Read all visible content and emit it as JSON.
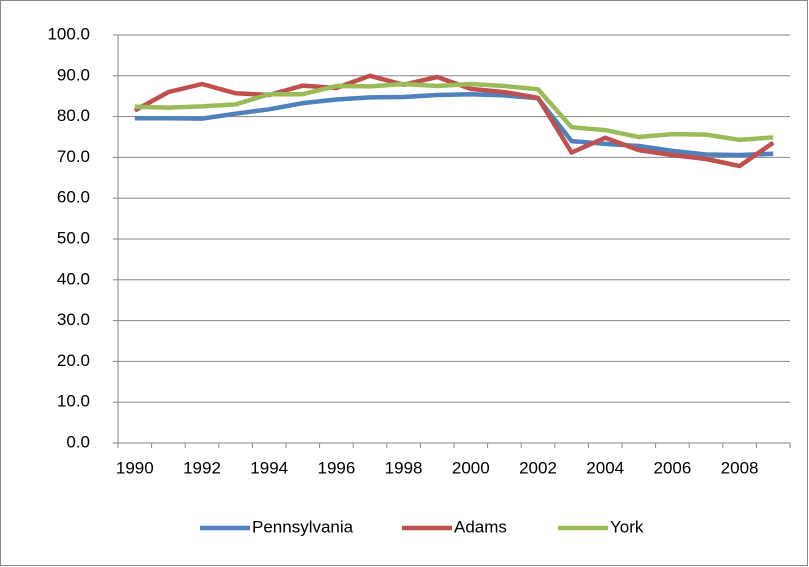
{
  "chart_data": {
    "type": "line",
    "categories": [
      "1990",
      null,
      "1992",
      null,
      "1994",
      null,
      "1996",
      null,
      "1998",
      null,
      "2000",
      null,
      "2002",
      null,
      "2004",
      null,
      "2006",
      null,
      "2008",
      null
    ],
    "series": [
      {
        "name": "Pennsylvania",
        "color": "#4f81bd",
        "values": [
          79.6,
          79.6,
          79.5,
          80.7,
          81.8,
          83.3,
          84.2,
          84.7,
          84.8,
          85.3,
          85.5,
          85.2,
          84.5,
          74.0,
          73.3,
          72.8,
          71.6,
          70.7,
          70.6,
          70.9
        ]
      },
      {
        "name": "Adams",
        "color": "#c0504d",
        "values": [
          81.5,
          86.0,
          88.0,
          85.7,
          85.3,
          87.6,
          87.0,
          90.0,
          87.8,
          89.7,
          86.8,
          86.0,
          84.6,
          71.2,
          74.8,
          71.8,
          70.6,
          69.6,
          67.9,
          73.6
        ]
      },
      {
        "name": "York",
        "color": "#9bbb59",
        "values": [
          82.4,
          82.2,
          82.5,
          83.0,
          85.5,
          85.5,
          87.5,
          87.4,
          88.0,
          87.5,
          88.0,
          87.5,
          86.7,
          77.4,
          76.7,
          75.0,
          75.7,
          75.6,
          74.3,
          74.9
        ]
      }
    ],
    "ylim": [
      0,
      100
    ],
    "yticks": [
      {
        "value": 0,
        "label": "0.0"
      },
      {
        "value": 10,
        "label": "10.0"
      },
      {
        "value": 20,
        "label": "20.0"
      },
      {
        "value": 30,
        "label": "30.0"
      },
      {
        "value": 40,
        "label": "40.0"
      },
      {
        "value": 50,
        "label": "50.0"
      },
      {
        "value": 60,
        "label": "60.0"
      },
      {
        "value": 70,
        "label": "70.0"
      },
      {
        "value": 80,
        "label": "80.0"
      },
      {
        "value": 90,
        "label": "90.0"
      },
      {
        "value": 100,
        "label": "100.0"
      }
    ],
    "grid": true,
    "legend": "bottom"
  }
}
